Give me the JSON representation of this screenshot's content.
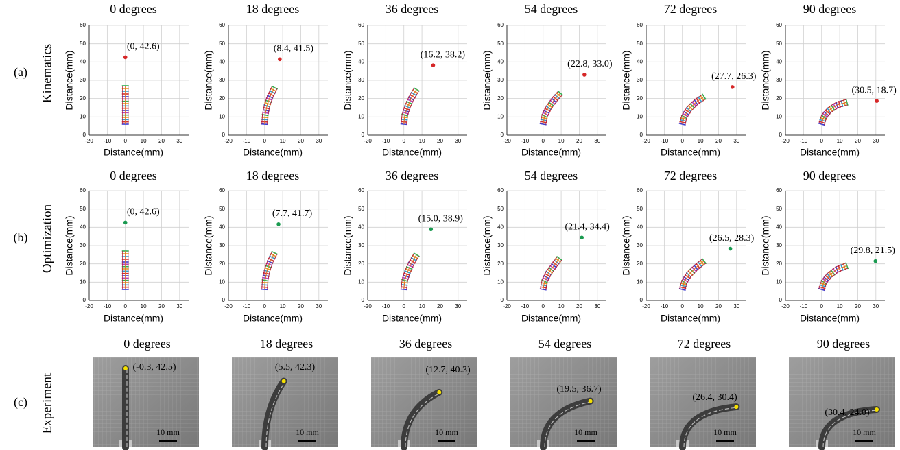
{
  "rows": [
    {
      "tag": "(a)",
      "name": "Kinematics"
    },
    {
      "tag": "(b)",
      "name": "Optimization"
    },
    {
      "tag": "(c)",
      "name": "Experiment"
    }
  ],
  "chart_data": [
    {
      "type": "scatter",
      "title": "0 degrees",
      "xlabel": "Distance(mm)",
      "ylabel": "Distance(mm)",
      "xlim": [
        -20,
        35
      ],
      "ylim": [
        0,
        60
      ],
      "xticks": [
        -20,
        -10,
        0,
        10,
        20,
        30
      ],
      "yticks": [
        0,
        10,
        20,
        30,
        40,
        50,
        60
      ],
      "grid": true,
      "series": [
        {
          "color": "#d62728",
          "x": [
            0
          ],
          "y": [
            42.6
          ],
          "value_labels": [
            "(0, 42.6)"
          ]
        }
      ],
      "backbone": {
        "x": [
          0,
          0,
          0,
          0,
          0
        ],
        "y": [
          6,
          11,
          16,
          21,
          27
        ]
      }
    },
    {
      "type": "scatter",
      "title": "18 degrees",
      "xlabel": "Distance(mm)",
      "ylabel": "Distance(mm)",
      "xlim": [
        -20,
        35
      ],
      "ylim": [
        0,
        60
      ],
      "xticks": [
        -20,
        -10,
        0,
        10,
        20,
        30
      ],
      "yticks": [
        0,
        10,
        20,
        30,
        40,
        50,
        60
      ],
      "grid": true,
      "series": [
        {
          "color": "#d62728",
          "x": [
            8.4
          ],
          "y": [
            41.5
          ],
          "value_labels": [
            "(8.4, 41.5)"
          ]
        }
      ],
      "backbone": {
        "x": [
          0,
          0.3,
          1.3,
          3,
          5.5
        ],
        "y": [
          6,
          11,
          16,
          21,
          26
        ]
      }
    },
    {
      "type": "scatter",
      "title": "36 degrees",
      "xlabel": "Distance(mm)",
      "ylabel": "Distance(mm)",
      "xlim": [
        -20,
        35
      ],
      "ylim": [
        0,
        60
      ],
      "xticks": [
        -20,
        -10,
        0,
        10,
        20,
        30
      ],
      "yticks": [
        0,
        10,
        20,
        30,
        40,
        50,
        60
      ],
      "grid": true,
      "series": [
        {
          "color": "#d62728",
          "x": [
            16.2
          ],
          "y": [
            38.2
          ],
          "value_labels": [
            "(16.2, 38.2)"
          ]
        }
      ],
      "backbone": {
        "x": [
          0,
          0.5,
          2,
          4,
          7
        ],
        "y": [
          6,
          11,
          15.5,
          20,
          25
        ]
      }
    },
    {
      "type": "scatter",
      "title": "54 degrees",
      "xlabel": "Distance(mm)",
      "ylabel": "Distance(mm)",
      "xlim": [
        -20,
        35
      ],
      "ylim": [
        0,
        60
      ],
      "xticks": [
        -20,
        -10,
        0,
        10,
        20,
        30
      ],
      "yticks": [
        0,
        10,
        20,
        30,
        40,
        50,
        60
      ],
      "grid": true,
      "series": [
        {
          "color": "#d62728",
          "x": [
            22.8
          ],
          "y": [
            33.0
          ],
          "value_labels": [
            "(22.8, 33.0)"
          ]
        }
      ],
      "backbone": {
        "x": [
          0,
          0.8,
          3,
          6,
          9.5
        ],
        "y": [
          6,
          10.5,
          15,
          19,
          23
        ]
      }
    },
    {
      "type": "scatter",
      "title": "72 degrees",
      "xlabel": "Distance(mm)",
      "ylabel": "Distance(mm)",
      "xlim": [
        -20,
        35
      ],
      "ylim": [
        0,
        60
      ],
      "xticks": [
        -20,
        -10,
        0,
        10,
        20,
        30
      ],
      "yticks": [
        0,
        10,
        20,
        30,
        40,
        50,
        60
      ],
      "grid": true,
      "series": [
        {
          "color": "#d62728",
          "x": [
            27.7
          ],
          "y": [
            26.3
          ],
          "value_labels": [
            "(27.7, 26.3)"
          ]
        }
      ],
      "backbone": {
        "x": [
          0,
          1,
          3.5,
          7.5,
          12
        ],
        "y": [
          6,
          10,
          14,
          18,
          21
        ]
      }
    },
    {
      "type": "scatter",
      "title": "90 degrees",
      "xlabel": "Distance(mm)",
      "ylabel": "Distance(mm)",
      "xlim": [
        -20,
        35
      ],
      "ylim": [
        0,
        60
      ],
      "xticks": [
        -20,
        -10,
        0,
        10,
        20,
        30
      ],
      "yticks": [
        0,
        10,
        20,
        30,
        40,
        50,
        60
      ],
      "grid": true,
      "series": [
        {
          "color": "#d62728",
          "x": [
            30.5
          ],
          "y": [
            18.7
          ],
          "value_labels": [
            "(30.5, 18.7)"
          ]
        }
      ],
      "backbone": {
        "x": [
          0,
          1.2,
          4,
          8.5,
          14
        ],
        "y": [
          6,
          10,
          13.5,
          16.5,
          18
        ]
      }
    },
    {
      "type": "scatter",
      "title": "0 degrees",
      "xlabel": "Distance(mm)",
      "ylabel": "Distance(mm)",
      "xlim": [
        -20,
        35
      ],
      "ylim": [
        0,
        60
      ],
      "xticks": [
        -20,
        -10,
        0,
        10,
        20,
        30
      ],
      "yticks": [
        0,
        10,
        20,
        30,
        40,
        50,
        60
      ],
      "grid": true,
      "series": [
        {
          "color": "#1a9a50",
          "x": [
            0
          ],
          "y": [
            42.6
          ],
          "value_labels": [
            "(0, 42.6)"
          ]
        }
      ],
      "backbone": {
        "x": [
          0,
          0,
          0,
          0,
          0
        ],
        "y": [
          6,
          11,
          16,
          21,
          27
        ]
      }
    },
    {
      "type": "scatter",
      "title": "18 degrees",
      "xlabel": "Distance(mm)",
      "ylabel": "Distance(mm)",
      "xlim": [
        -20,
        35
      ],
      "ylim": [
        0,
        60
      ],
      "xticks": [
        -20,
        -10,
        0,
        10,
        20,
        30
      ],
      "yticks": [
        0,
        10,
        20,
        30,
        40,
        50,
        60
      ],
      "grid": true,
      "series": [
        {
          "color": "#1a9a50",
          "x": [
            7.7
          ],
          "y": [
            41.7
          ],
          "value_labels": [
            "(7.7, 41.7)"
          ]
        }
      ],
      "backbone": {
        "x": [
          0,
          0.3,
          1.3,
          3,
          5.5
        ],
        "y": [
          6,
          11,
          16,
          21,
          26
        ]
      }
    },
    {
      "type": "scatter",
      "title": "36 degrees",
      "xlabel": "Distance(mm)",
      "ylabel": "Distance(mm)",
      "xlim": [
        -20,
        35
      ],
      "ylim": [
        0,
        60
      ],
      "xticks": [
        -20,
        -10,
        0,
        10,
        20,
        30
      ],
      "yticks": [
        0,
        10,
        20,
        30,
        40,
        50,
        60
      ],
      "grid": true,
      "series": [
        {
          "color": "#1a9a50",
          "x": [
            15.0
          ],
          "y": [
            38.9
          ],
          "value_labels": [
            "(15.0, 38.9)"
          ]
        }
      ],
      "backbone": {
        "x": [
          0,
          0.5,
          2,
          4,
          7
        ],
        "y": [
          6,
          11,
          15.5,
          20,
          25
        ]
      }
    },
    {
      "type": "scatter",
      "title": "54 degrees",
      "xlabel": "Distance(mm)",
      "ylabel": "Distance(mm)",
      "xlim": [
        -20,
        35
      ],
      "ylim": [
        0,
        60
      ],
      "xticks": [
        -20,
        -10,
        0,
        10,
        20,
        30
      ],
      "yticks": [
        0,
        10,
        20,
        30,
        40,
        50,
        60
      ],
      "grid": true,
      "series": [
        {
          "color": "#1a9a50",
          "x": [
            21.4
          ],
          "y": [
            34.4
          ],
          "value_labels": [
            "(21.4, 34.4)"
          ]
        }
      ],
      "backbone": {
        "x": [
          0,
          0.8,
          3,
          6,
          9
        ],
        "y": [
          6,
          10.5,
          15,
          19,
          23
        ]
      }
    },
    {
      "type": "scatter",
      "title": "72 degrees",
      "xlabel": "Distance(mm)",
      "ylabel": "Distance(mm)",
      "xlim": [
        -20,
        35
      ],
      "ylim": [
        0,
        60
      ],
      "xticks": [
        -20,
        -10,
        0,
        10,
        20,
        30
      ],
      "yticks": [
        0,
        10,
        20,
        30,
        40,
        50,
        60
      ],
      "grid": true,
      "series": [
        {
          "color": "#1a9a50",
          "x": [
            26.5
          ],
          "y": [
            28.3
          ],
          "value_labels": [
            "(26.5, 28.3)"
          ]
        }
      ],
      "backbone": {
        "x": [
          0,
          1,
          3.5,
          7.5,
          12
        ],
        "y": [
          6,
          10,
          14,
          18,
          21.5
        ]
      }
    },
    {
      "type": "scatter",
      "title": "90 degrees",
      "xlabel": "Distance(mm)",
      "ylabel": "Distance(mm)",
      "xlim": [
        -20,
        35
      ],
      "ylim": [
        0,
        60
      ],
      "xticks": [
        -20,
        -10,
        0,
        10,
        20,
        30
      ],
      "yticks": [
        0,
        10,
        20,
        30,
        40,
        50,
        60
      ],
      "grid": true,
      "series": [
        {
          "color": "#1a9a50",
          "x": [
            29.8
          ],
          "y": [
            21.5
          ],
          "value_labels": [
            "(29.8, 21.5)"
          ]
        }
      ],
      "backbone": {
        "x": [
          0,
          1.2,
          4,
          8.5,
          14
        ],
        "y": [
          6,
          10,
          13.5,
          17,
          19
        ]
      }
    }
  ],
  "experiment": [
    {
      "title": "0 degrees",
      "tip": "(-0.3, 42.5)",
      "scale": "10 mm"
    },
    {
      "title": "18 degrees",
      "tip": "(5.5, 42.3)",
      "scale": "10 mm"
    },
    {
      "title": "36 degrees",
      "tip": "(12.7, 40.3)",
      "scale": "10 mm"
    },
    {
      "title": "54 degrees",
      "tip": "(19.5, 36.7)",
      "scale": "10 mm"
    },
    {
      "title": "72 degrees",
      "tip": "(26.4, 30.4)",
      "scale": "10 mm"
    },
    {
      "title": "90 degrees",
      "tip": "(30.4, 24.0)",
      "scale": "10 mm"
    }
  ]
}
